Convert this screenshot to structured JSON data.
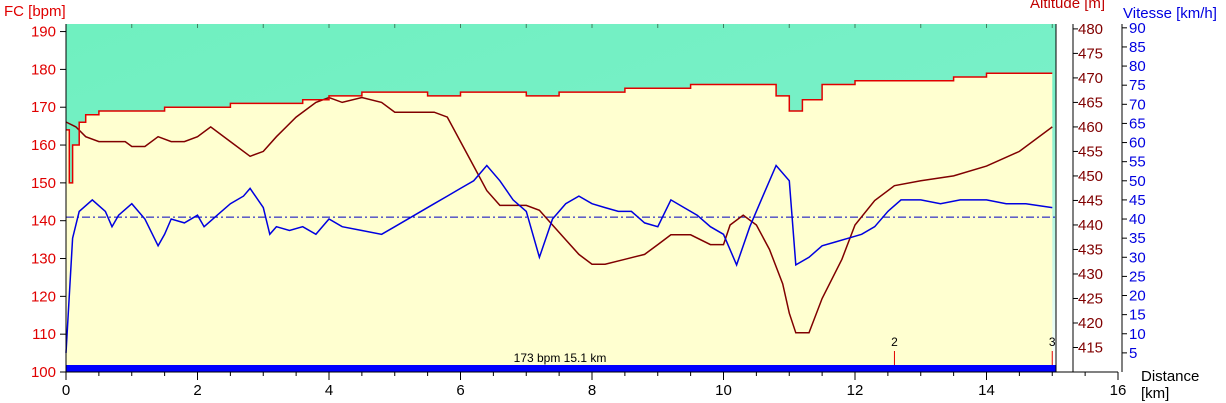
{
  "colors": {
    "hr": "#e00000",
    "altitude": "#800000",
    "speed": "#0000e0",
    "altitude_fill": "#ffffd0",
    "background_top": "#70f0c0",
    "background_bottom": "#ffffff",
    "bar": "#0000ff"
  },
  "chart_data": {
    "type": "line",
    "x_axis": {
      "title": "Distance\n[km]",
      "range": [
        0,
        16
      ],
      "ticks": [
        "0",
        "2",
        "4",
        "6",
        "8",
        "10",
        "12",
        "14",
        "16"
      ]
    },
    "y_left": {
      "title": "FC [bpm]",
      "range": [
        100,
        192
      ],
      "ticks": [
        "100",
        "110",
        "120",
        "130",
        "140",
        "150",
        "160",
        "170",
        "180",
        "190"
      ]
    },
    "y_altitude": {
      "title": "Altitude [m]",
      "range": [
        410,
        481
      ],
      "ticks": [
        "415",
        "420",
        "425",
        "430",
        "435",
        "440",
        "445",
        "450",
        "455",
        "460",
        "465",
        "470",
        "475",
        "480"
      ]
    },
    "y_speed": {
      "title": "Vitesse [km/h]",
      "range": [
        0,
        91
      ],
      "ticks": [
        "5",
        "10",
        "15",
        "20",
        "25",
        "30",
        "35",
        "40",
        "45",
        "50",
        "55",
        "60",
        "65",
        "70",
        "75",
        "80",
        "85",
        "90"
      ]
    },
    "reference_line": {
      "axis": "speed",
      "value": 40.5,
      "style": "dash-dot"
    },
    "summary_bar_label": "173 bpm 15.1 km",
    "laps": [
      {
        "label": "2",
        "x": 12.6
      },
      {
        "label": "3",
        "x": 15.0
      }
    ],
    "series": [
      {
        "axis": "y_altitude",
        "x": [
          0,
          0.15,
          0.3,
          0.5,
          0.7,
          0.9,
          1.0,
          1.2,
          1.4,
          1.6,
          1.8,
          2.0,
          2.2,
          2.5,
          2.8,
          3.0,
          3.2,
          3.5,
          3.8,
          4.0,
          4.2,
          4.5,
          4.8,
          5.0,
          5.3,
          5.6,
          5.8,
          6.0,
          6.2,
          6.4,
          6.6,
          6.8,
          7.0,
          7.2,
          7.4,
          7.6,
          7.8,
          8.0,
          8.2,
          8.5,
          8.8,
          9.0,
          9.2,
          9.5,
          9.8,
          10.0,
          10.1,
          10.3,
          10.5,
          10.7,
          10.9,
          11.0,
          11.1,
          11.3,
          11.5,
          11.8,
          12.0,
          12.3,
          12.6,
          13.0,
          13.5,
          14.0,
          14.5,
          15.0
        ],
        "y": [
          461,
          460,
          458,
          457,
          457,
          457,
          456,
          456,
          458,
          457,
          457,
          458,
          460,
          457,
          454,
          455,
          458,
          462,
          465,
          466,
          465,
          466,
          465,
          463,
          463,
          463,
          462,
          457,
          452,
          447,
          444,
          444,
          444,
          443,
          440,
          437,
          434,
          432,
          432,
          433,
          434,
          436,
          438,
          438,
          436,
          436,
          440,
          442,
          440,
          435,
          428,
          422,
          418,
          418,
          425,
          433,
          440,
          445,
          448,
          449,
          450,
          452,
          455,
          460
        ]
      },
      {
        "axis": "y_left",
        "x": [
          0,
          0.05,
          0.1,
          0.2,
          0.3,
          0.5,
          0.8,
          1.0,
          1.5,
          2.0,
          2.5,
          3.0,
          3.3,
          3.6,
          4.0,
          4.2,
          4.5,
          5.0,
          5.5,
          6.0,
          6.5,
          7.0,
          7.5,
          8.0,
          8.5,
          9.0,
          9.5,
          10.0,
          10.5,
          10.8,
          11.0,
          11.2,
          11.5,
          12.0,
          12.5,
          13.0,
          13.5,
          14.0,
          14.5,
          15.0
        ],
        "y": [
          164,
          150,
          160,
          166,
          168,
          169,
          169,
          169,
          170,
          170,
          171,
          171,
          171,
          172,
          173,
          173,
          174,
          174,
          173,
          174,
          174,
          173,
          174,
          174,
          175,
          175,
          176,
          176,
          176,
          173,
          169,
          172,
          176,
          177,
          177,
          177,
          178,
          179,
          179,
          179
        ]
      },
      {
        "axis": "y_speed",
        "x": [
          0,
          0.1,
          0.2,
          0.4,
          0.6,
          0.7,
          0.8,
          1.0,
          1.2,
          1.4,
          1.5,
          1.6,
          1.8,
          2.0,
          2.1,
          2.3,
          2.5,
          2.7,
          2.8,
          3.0,
          3.1,
          3.2,
          3.4,
          3.6,
          3.8,
          4.0,
          4.2,
          4.5,
          4.8,
          5.0,
          5.3,
          5.6,
          5.8,
          6.0,
          6.2,
          6.4,
          6.6,
          6.8,
          7.0,
          7.2,
          7.4,
          7.6,
          7.8,
          8.0,
          8.2,
          8.4,
          8.6,
          8.8,
          9.0,
          9.2,
          9.4,
          9.6,
          9.8,
          10.0,
          10.2,
          10.4,
          10.6,
          10.8,
          11.0,
          11.1,
          11.3,
          11.5,
          11.7,
          11.9,
          12.1,
          12.3,
          12.5,
          12.7,
          13.0,
          13.3,
          13.6,
          14.0,
          14.3,
          14.6,
          15.0
        ],
        "y": [
          5,
          35,
          42,
          45,
          42,
          38,
          41,
          44,
          40,
          33,
          36,
          40,
          39,
          41,
          38,
          41,
          44,
          46,
          48,
          43,
          36,
          38,
          37,
          38,
          36,
          40,
          38,
          37,
          36,
          38,
          41,
          44,
          46,
          48,
          50,
          54,
          50,
          45,
          42,
          30,
          40,
          44,
          46,
          44,
          43,
          42,
          42,
          39,
          38,
          45,
          43,
          41,
          38,
          36,
          28,
          38,
          46,
          54,
          50,
          28,
          30,
          33,
          34,
          35,
          36,
          38,
          42,
          45,
          45,
          44,
          45,
          45,
          44,
          44,
          43
        ]
      }
    ]
  }
}
